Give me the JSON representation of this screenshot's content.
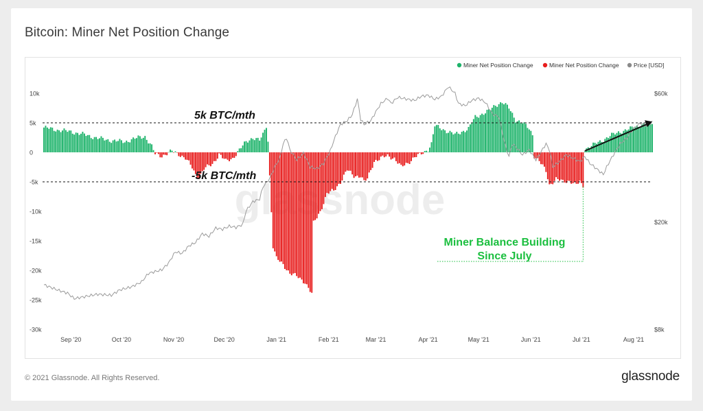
{
  "title": "Bitcoin: Miner Net Position Change",
  "footer": {
    "copyright": "© 2021 Glassnode. All Rights Reserved.",
    "brand": "glassnode"
  },
  "watermark": "glassnode",
  "colors": {
    "positive": "#1db36a",
    "negative": "#e81c1c",
    "price": "#9a9a9a",
    "annotation_green": "#1bbf3f"
  },
  "chart_data": {
    "type": "bar",
    "legend": {
      "position": "top-right",
      "entries": [
        {
          "label": "Miner Net Position Change",
          "color": "#1db36a"
        },
        {
          "label": "Miner Net Position Change",
          "color": "#e81c1c"
        },
        {
          "label": "Price [USD]",
          "color": "#8a8a8a"
        }
      ]
    },
    "y_left": {
      "ticks": [
        10000,
        5000,
        0,
        -5000,
        -10000,
        -15000,
        -20000,
        -25000,
        -30000
      ],
      "tick_labels": [
        "10k",
        "5k",
        "0",
        "-5k",
        "-10k",
        "-15k",
        "-20k",
        "-25k",
        "-30k"
      ],
      "range": [
        -30000,
        10000
      ]
    },
    "y_right": {
      "scale": "log",
      "ticks": [
        60000,
        20000,
        8000
      ],
      "tick_labels": [
        "$60k",
        "$20k",
        "$8k"
      ],
      "range": [
        8000,
        60000
      ]
    },
    "x_ticks": [
      "Sep '20",
      "Oct '20",
      "Nov '20",
      "Dec '20",
      "Jan '21",
      "Feb '21",
      "Mar '21",
      "Apr '21",
      "May '21",
      "Jun '21",
      "Jul '21",
      "Aug '21"
    ],
    "x_range_days": [
      0,
      361
    ],
    "x_tick_days": [
      16,
      46,
      77,
      107,
      138,
      169,
      197,
      228,
      258,
      289,
      319,
      350
    ],
    "net_position_keypoints": [
      [
        0,
        4200
      ],
      [
        8,
        3800
      ],
      [
        16,
        3500
      ],
      [
        24,
        3000
      ],
      [
        32,
        2400
      ],
      [
        40,
        2000
      ],
      [
        48,
        1800
      ],
      [
        56,
        2500
      ],
      [
        60,
        2700
      ],
      [
        64,
        1000
      ],
      [
        66,
        -300
      ],
      [
        70,
        -600
      ],
      [
        76,
        200
      ],
      [
        80,
        -300
      ],
      [
        84,
        -1000
      ],
      [
        88,
        -2600
      ],
      [
        90,
        -3800
      ],
      [
        92,
        -4200
      ],
      [
        95,
        -2800
      ],
      [
        100,
        -2000
      ],
      [
        104,
        -300
      ],
      [
        108,
        -1500
      ],
      [
        112,
        -1000
      ],
      [
        116,
        400
      ],
      [
        120,
        1800
      ],
      [
        124,
        2500
      ],
      [
        128,
        2000
      ],
      [
        130,
        3000
      ],
      [
        132,
        4500
      ],
      [
        133,
        2000
      ],
      [
        134,
        -4000
      ],
      [
        135,
        -10000
      ],
      [
        136,
        -16000
      ],
      [
        138,
        -18000
      ],
      [
        142,
        -19000
      ],
      [
        146,
        -20500
      ],
      [
        150,
        -21000
      ],
      [
        155,
        -22000
      ],
      [
        158,
        -23500
      ],
      [
        159,
        -24000
      ],
      [
        160,
        -12000
      ],
      [
        164,
        -10000
      ],
      [
        168,
        -7000
      ],
      [
        172,
        -6500
      ],
      [
        176,
        -5000
      ],
      [
        180,
        -3000
      ],
      [
        184,
        -4000
      ],
      [
        188,
        -4000
      ],
      [
        190,
        -5000
      ],
      [
        192,
        -4500
      ],
      [
        196,
        -1500
      ],
      [
        200,
        -1000
      ],
      [
        204,
        -600
      ],
      [
        208,
        -1000
      ],
      [
        212,
        -2500
      ],
      [
        216,
        -1800
      ],
      [
        220,
        -800
      ],
      [
        224,
        -300
      ],
      [
        228,
        500
      ],
      [
        230,
        1500
      ],
      [
        232,
        4500
      ],
      [
        236,
        4000
      ],
      [
        240,
        3500
      ],
      [
        244,
        3000
      ],
      [
        248,
        3500
      ],
      [
        252,
        4000
      ],
      [
        256,
        6000
      ],
      [
        260,
        6500
      ],
      [
        264,
        7000
      ],
      [
        268,
        8000
      ],
      [
        272,
        8500
      ],
      [
        276,
        7500
      ],
      [
        278,
        6500
      ],
      [
        280,
        5500
      ],
      [
        284,
        5000
      ],
      [
        288,
        4000
      ],
      [
        290,
        3000
      ],
      [
        291,
        -600
      ],
      [
        294,
        -1500
      ],
      [
        298,
        -3200
      ],
      [
        300,
        -5500
      ],
      [
        304,
        -4500
      ],
      [
        308,
        -5000
      ],
      [
        312,
        -4800
      ],
      [
        316,
        -5500
      ],
      [
        318,
        -5000
      ],
      [
        319,
        -5500
      ],
      [
        320,
        -5800
      ],
      [
        321,
        500
      ],
      [
        324,
        1000
      ],
      [
        330,
        1800
      ],
      [
        336,
        2800
      ],
      [
        342,
        3500
      ],
      [
        348,
        4000
      ],
      [
        356,
        4800
      ],
      [
        361,
        5000
      ]
    ],
    "price_keypoints": [
      [
        0,
        11700
      ],
      [
        8,
        11200
      ],
      [
        14,
        10900
      ],
      [
        18,
        10400
      ],
      [
        25,
        10600
      ],
      [
        32,
        10800
      ],
      [
        40,
        10700
      ],
      [
        45,
        11200
      ],
      [
        52,
        11500
      ],
      [
        58,
        12000
      ],
      [
        62,
        12900
      ],
      [
        66,
        13100
      ],
      [
        70,
        13300
      ],
      [
        74,
        14100
      ],
      [
        78,
        15500
      ],
      [
        82,
        15300
      ],
      [
        86,
        16300
      ],
      [
        90,
        16800
      ],
      [
        94,
        18100
      ],
      [
        98,
        17700
      ],
      [
        102,
        19000
      ],
      [
        106,
        18800
      ],
      [
        110,
        19300
      ],
      [
        114,
        19100
      ],
      [
        118,
        19600
      ],
      [
        120,
        22000
      ],
      [
        124,
        23800
      ],
      [
        128,
        24300
      ],
      [
        130,
        27000
      ],
      [
        134,
        29000
      ],
      [
        137,
        32000
      ],
      [
        140,
        34500
      ],
      [
        142,
        39000
      ],
      [
        144,
        41000
      ],
      [
        146,
        37000
      ],
      [
        148,
        35500
      ],
      [
        150,
        34000
      ],
      [
        154,
        36000
      ],
      [
        158,
        32000
      ],
      [
        162,
        31500
      ],
      [
        166,
        33000
      ],
      [
        170,
        36800
      ],
      [
        172,
        40000
      ],
      [
        176,
        46000
      ],
      [
        180,
        47500
      ],
      [
        183,
        50000
      ],
      [
        186,
        57000
      ],
      [
        188,
        48000
      ],
      [
        190,
        46000
      ],
      [
        194,
        47500
      ],
      [
        196,
        50000
      ],
      [
        200,
        55000
      ],
      [
        204,
        57500
      ],
      [
        206,
        55000
      ],
      [
        210,
        58000
      ],
      [
        216,
        57000
      ],
      [
        220,
        56500
      ],
      [
        224,
        58500
      ],
      [
        228,
        59000
      ],
      [
        232,
        57000
      ],
      [
        236,
        58500
      ],
      [
        240,
        63500
      ],
      [
        244,
        60000
      ],
      [
        246,
        55000
      ],
      [
        250,
        54000
      ],
      [
        254,
        56500
      ],
      [
        258,
        57500
      ],
      [
        262,
        55500
      ],
      [
        266,
        50500
      ],
      [
        270,
        49000
      ],
      [
        272,
        43000
      ],
      [
        274,
        38000
      ],
      [
        276,
        35000
      ],
      [
        278,
        39000
      ],
      [
        280,
        38000
      ],
      [
        284,
        35500
      ],
      [
        288,
        37000
      ],
      [
        292,
        34000
      ],
      [
        294,
        35500
      ],
      [
        298,
        39000
      ],
      [
        300,
        37000
      ],
      [
        302,
        32000
      ],
      [
        306,
        33500
      ],
      [
        310,
        35500
      ],
      [
        314,
        34500
      ],
      [
        318,
        33500
      ],
      [
        321,
        35000
      ],
      [
        324,
        33000
      ],
      [
        328,
        31500
      ],
      [
        332,
        30000
      ],
      [
        334,
        32000
      ],
      [
        338,
        35500
      ],
      [
        342,
        39000
      ],
      [
        346,
        41000
      ],
      [
        350,
        44500
      ],
      [
        354,
        46500
      ],
      [
        358,
        45500
      ],
      [
        361,
        47000
      ]
    ],
    "annotations": {
      "upper_line_label": "5k BTC/mth",
      "lower_line_label": "-5k BTC/mth",
      "callout_line1": "Miner Balance Building",
      "callout_line2": "Since July"
    },
    "reference_lines": [
      5000,
      -5000
    ]
  }
}
